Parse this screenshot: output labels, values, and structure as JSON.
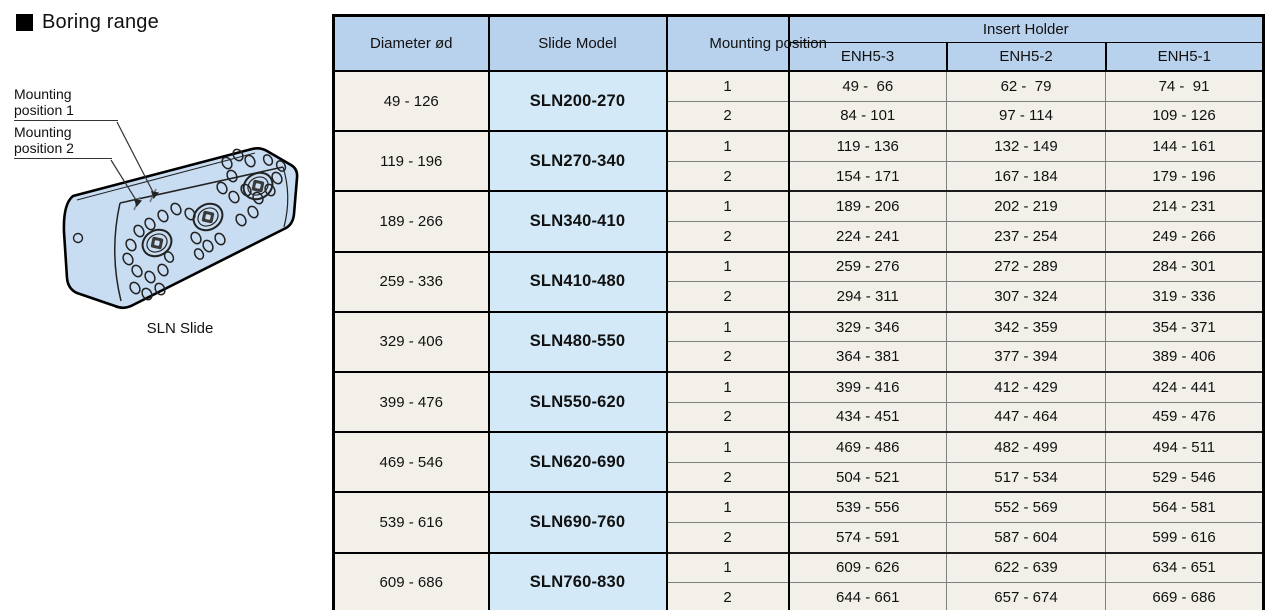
{
  "colors": {
    "header_blue": "#b8d1ec",
    "model_blue": "#d3e9f8",
    "cream": "#f2f0e8",
    "block_blue": "#c8dcf2"
  },
  "section": {
    "title": "Boring range"
  },
  "illustration": {
    "label_position1": "Mounting position 1",
    "label_position2": "Mounting position 2",
    "caption": "SLN Slide"
  },
  "table": {
    "col_headers": {
      "diameter": "Diameter ød",
      "slide_model": "Slide Model",
      "mounting_position": "Mounting position",
      "insert_holder": "Insert Holder"
    },
    "insert_holder_cols": [
      "ENH5-3",
      "ENH5-2",
      "ENH5-1"
    ],
    "groups": [
      {
        "diameter": "49 - 126",
        "model": "SLN200-270",
        "rows": [
          [
            "1",
            "49 -  66",
            "62 -  79",
            "74 -  91"
          ],
          [
            "2",
            "84 - 101",
            "97 - 114",
            "109 - 126"
          ]
        ]
      },
      {
        "diameter": "119 - 196",
        "model": "SLN270-340",
        "rows": [
          [
            "1",
            "119 - 136",
            "132 - 149",
            "144 - 161"
          ],
          [
            "2",
            "154 - 171",
            "167 - 184",
            "179 - 196"
          ]
        ]
      },
      {
        "diameter": "189 - 266",
        "model": "SLN340-410",
        "rows": [
          [
            "1",
            "189 - 206",
            "202 - 219",
            "214 - 231"
          ],
          [
            "2",
            "224 - 241",
            "237 - 254",
            "249 - 266"
          ]
        ]
      },
      {
        "diameter": "259 - 336",
        "model": "SLN410-480",
        "rows": [
          [
            "1",
            "259 - 276",
            "272 - 289",
            "284 - 301"
          ],
          [
            "2",
            "294 - 311",
            "307 - 324",
            "319 - 336"
          ]
        ]
      },
      {
        "diameter": "329 - 406",
        "model": "SLN480-550",
        "rows": [
          [
            "1",
            "329 - 346",
            "342 - 359",
            "354 - 371"
          ],
          [
            "2",
            "364 - 381",
            "377 - 394",
            "389 - 406"
          ]
        ]
      },
      {
        "diameter": "399 - 476",
        "model": "SLN550-620",
        "rows": [
          [
            "1",
            "399 - 416",
            "412 - 429",
            "424 - 441"
          ],
          [
            "2",
            "434 - 451",
            "447 - 464",
            "459 - 476"
          ]
        ]
      },
      {
        "diameter": "469 - 546",
        "model": "SLN620-690",
        "rows": [
          [
            "1",
            "469 - 486",
            "482 - 499",
            "494 - 511"
          ],
          [
            "2",
            "504 - 521",
            "517 - 534",
            "529 - 546"
          ]
        ]
      },
      {
        "diameter": "539 - 616",
        "model": "SLN690-760",
        "rows": [
          [
            "1",
            "539 - 556",
            "552 - 569",
            "564 - 581"
          ],
          [
            "2",
            "574 - 591",
            "587 - 604",
            "599 - 616"
          ]
        ]
      },
      {
        "diameter": "609 - 686",
        "model": "SLN760-830",
        "rows": [
          [
            "1",
            "609 - 626",
            "622 - 639",
            "634 - 651"
          ],
          [
            "2",
            "644 - 661",
            "657 - 674",
            "669 - 686"
          ]
        ]
      }
    ]
  }
}
